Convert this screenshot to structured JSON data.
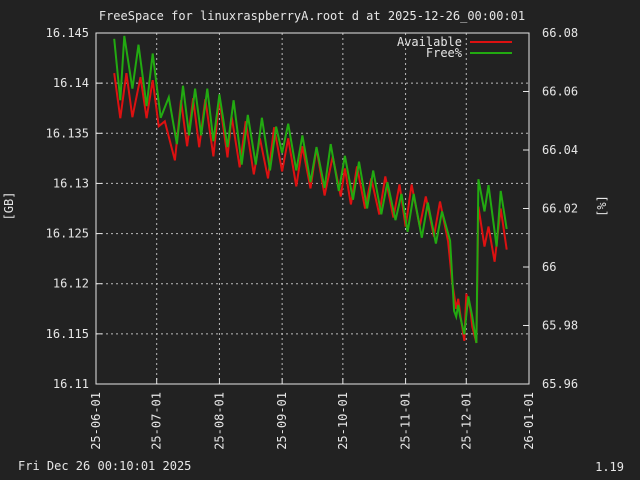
{
  "chart_data": {
    "type": "line",
    "title": "FreeSpace for linuxraspberryA.root d at 2025-12-26_00:00:01",
    "ylabel": "[GB]",
    "y2label": "[%]",
    "footer_left": "Fri Dec 26 00:10:01 2025",
    "footer_right": "1.19",
    "grid": true,
    "legend_position": "top-right",
    "ylim": [
      16.11,
      16.145
    ],
    "y2lim": [
      65.96,
      66.08
    ],
    "y_ticks": [
      16.11,
      16.115,
      16.12,
      16.125,
      16.13,
      16.135,
      16.14,
      16.145
    ],
    "y_tick_labels": [
      "16.11",
      "16.115",
      "16.12",
      "16.125",
      "16.13",
      "16.135",
      "16.14",
      "16.145"
    ],
    "y2_ticks": [
      65.96,
      65.98,
      66,
      66.02,
      66.04,
      66.06,
      66.08
    ],
    "y2_tick_labels": [
      "65.96",
      "65.98",
      "66",
      "66.02",
      "66.04",
      "66.06",
      "66.08"
    ],
    "x_range": [
      "2025-06-01",
      "2026-01-01"
    ],
    "x_ticks": [
      "2025-06-01",
      "2025-07-01",
      "2025-08-01",
      "2025-09-01",
      "2025-10-01",
      "2025-11-01",
      "2025-12-01",
      "2026-01-01"
    ],
    "x_tick_labels": [
      "25-06-01",
      "25-07-01",
      "25-08-01",
      "25-09-01",
      "25-10-01",
      "25-11-01",
      "25-12-01",
      "26-01-01"
    ],
    "series": [
      {
        "name": "Available",
        "axis": "left",
        "color": "#dd1111",
        "points": [
          [
            "2025-06-10",
            16.141
          ],
          [
            "2025-06-13",
            16.1365
          ],
          [
            "2025-06-16",
            16.141
          ],
          [
            "2025-06-19",
            16.1366
          ],
          [
            "2025-06-23",
            16.1406
          ],
          [
            "2025-06-26",
            16.1365
          ],
          [
            "2025-06-29",
            16.1403
          ],
          [
            "2025-07-02",
            16.1357
          ],
          [
            "2025-07-05",
            16.1362
          ],
          [
            "2025-07-10",
            16.1323
          ],
          [
            "2025-07-13",
            16.1383
          ],
          [
            "2025-07-16",
            16.1337
          ],
          [
            "2025-07-19",
            16.1385
          ],
          [
            "2025-07-22",
            16.1336
          ],
          [
            "2025-07-25",
            16.1384
          ],
          [
            "2025-07-29",
            16.1327
          ],
          [
            "2025-08-01",
            16.1384
          ],
          [
            "2025-08-05",
            16.1326
          ],
          [
            "2025-08-07",
            16.1367
          ],
          [
            "2025-08-11",
            16.1316
          ],
          [
            "2025-08-14",
            16.1362
          ],
          [
            "2025-08-18",
            16.1309
          ],
          [
            "2025-08-21",
            16.1345
          ],
          [
            "2025-08-25",
            16.1305
          ],
          [
            "2025-08-28",
            16.1356
          ],
          [
            "2025-09-01",
            16.1312
          ],
          [
            "2025-09-04",
            16.1345
          ],
          [
            "2025-09-08",
            16.1297
          ],
          [
            "2025-09-11",
            16.1337
          ],
          [
            "2025-09-15",
            16.1295
          ],
          [
            "2025-09-18",
            16.1335
          ],
          [
            "2025-09-22",
            16.1288
          ],
          [
            "2025-09-26",
            16.1327
          ],
          [
            "2025-09-30",
            16.1287
          ],
          [
            "2025-10-02",
            16.1315
          ],
          [
            "2025-10-05",
            16.1279
          ],
          [
            "2025-10-08",
            16.1317
          ],
          [
            "2025-10-12",
            16.1275
          ],
          [
            "2025-10-15",
            16.1305
          ],
          [
            "2025-10-19",
            16.1269
          ],
          [
            "2025-10-22",
            16.1307
          ],
          [
            "2025-10-26",
            16.1266
          ],
          [
            "2025-10-29",
            16.1299
          ],
          [
            "2025-11-01",
            16.1257
          ],
          [
            "2025-11-04",
            16.1299
          ],
          [
            "2025-11-08",
            16.1257
          ],
          [
            "2025-11-11",
            16.1287
          ],
          [
            "2025-11-15",
            16.1247
          ],
          [
            "2025-11-18",
            16.1282
          ],
          [
            "2025-11-22",
            16.1242
          ],
          [
            "2025-11-24",
            16.1202
          ],
          [
            "2025-11-26",
            16.1175
          ],
          [
            "2025-11-27",
            16.1185
          ],
          [
            "2025-11-28",
            16.117
          ],
          [
            "2025-11-30",
            16.1143
          ],
          [
            "2025-12-01",
            16.119
          ],
          [
            "2025-12-03",
            16.1175
          ],
          [
            "2025-12-04",
            16.1157
          ],
          [
            "2025-12-06",
            16.1141
          ],
          [
            "2025-12-07",
            16.1277
          ],
          [
            "2025-12-10",
            16.1237
          ],
          [
            "2025-12-12",
            16.1257
          ],
          [
            "2025-12-15",
            16.1222
          ],
          [
            "2025-12-18",
            16.1275
          ],
          [
            "2025-12-21",
            16.1234
          ]
        ]
      },
      {
        "name": "Free%",
        "axis": "right",
        "color": "#22aa11",
        "points": [
          [
            "2025-06-10",
            66.078
          ],
          [
            "2025-06-13",
            66.057
          ],
          [
            "2025-06-15",
            66.079
          ],
          [
            "2025-06-19",
            66.061
          ],
          [
            "2025-06-22",
            66.076
          ],
          [
            "2025-06-26",
            66.055
          ],
          [
            "2025-06-29",
            66.073
          ],
          [
            "2025-07-03",
            66.051
          ],
          [
            "2025-07-07",
            66.058
          ],
          [
            "2025-07-11",
            66.042
          ],
          [
            "2025-07-14",
            66.062
          ],
          [
            "2025-07-17",
            66.045
          ],
          [
            "2025-07-20",
            66.061
          ],
          [
            "2025-07-23",
            66.045
          ],
          [
            "2025-07-26",
            66.061
          ],
          [
            "2025-07-29",
            66.043
          ],
          [
            "2025-08-01",
            66.059
          ],
          [
            "2025-08-05",
            66.041
          ],
          [
            "2025-08-08",
            66.057
          ],
          [
            "2025-08-12",
            66.035
          ],
          [
            "2025-08-15",
            66.052
          ],
          [
            "2025-08-19",
            66.035
          ],
          [
            "2025-08-22",
            66.051
          ],
          [
            "2025-08-26",
            66.033
          ],
          [
            "2025-08-29",
            66.048
          ],
          [
            "2025-09-01",
            66.039
          ],
          [
            "2025-09-04",
            66.049
          ],
          [
            "2025-09-08",
            66.033
          ],
          [
            "2025-09-11",
            66.045
          ],
          [
            "2025-09-15",
            66.029
          ],
          [
            "2025-09-18",
            66.041
          ],
          [
            "2025-09-22",
            66.027
          ],
          [
            "2025-09-25",
            66.042
          ],
          [
            "2025-09-29",
            66.026
          ],
          [
            "2025-10-02",
            66.038
          ],
          [
            "2025-10-06",
            66.023
          ],
          [
            "2025-10-09",
            66.036
          ],
          [
            "2025-10-13",
            66.02
          ],
          [
            "2025-10-16",
            66.033
          ],
          [
            "2025-10-20",
            66.018
          ],
          [
            "2025-10-23",
            66.029
          ],
          [
            "2025-10-27",
            66.016
          ],
          [
            "2025-10-30",
            66.025
          ],
          [
            "2025-11-02",
            66.012
          ],
          [
            "2025-11-05",
            66.025
          ],
          [
            "2025-11-09",
            66.01
          ],
          [
            "2025-11-12",
            66.022
          ],
          [
            "2025-11-16",
            66.008
          ],
          [
            "2025-11-19",
            66.019
          ],
          [
            "2025-11-23",
            66.009
          ],
          [
            "2025-11-25",
            65.985
          ],
          [
            "2025-11-26",
            65.983
          ],
          [
            "2025-11-27",
            65.987
          ],
          [
            "2025-11-28",
            65.983
          ],
          [
            "2025-11-30",
            65.977
          ],
          [
            "2025-12-02",
            65.99
          ],
          [
            "2025-12-04",
            65.983
          ],
          [
            "2025-12-06",
            65.974
          ],
          [
            "2025-12-07",
            66.03
          ],
          [
            "2025-12-10",
            66.019
          ],
          [
            "2025-12-12",
            66.028
          ],
          [
            "2025-12-16",
            66.007
          ],
          [
            "2025-12-18",
            66.026
          ],
          [
            "2025-12-21",
            66.013
          ]
        ]
      }
    ]
  }
}
